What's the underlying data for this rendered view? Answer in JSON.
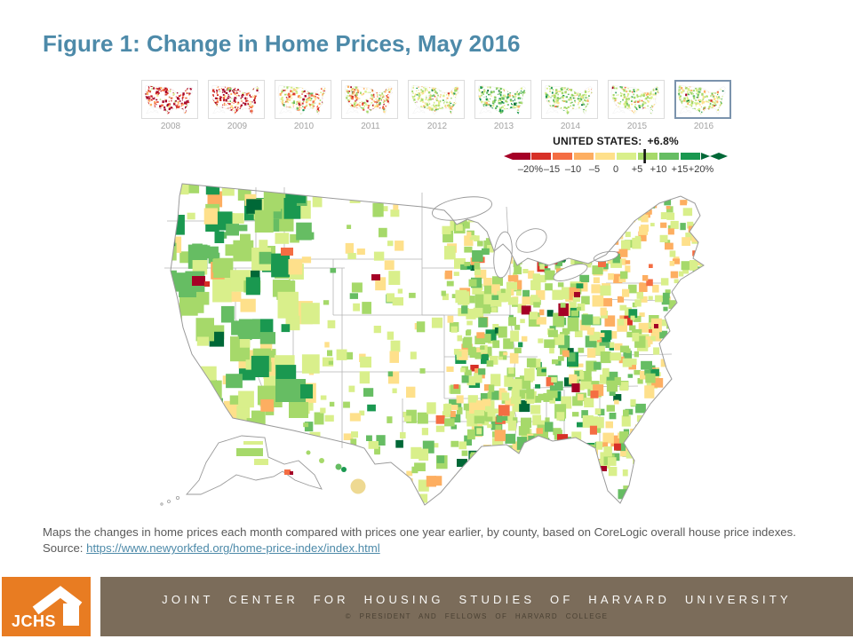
{
  "slide": {
    "title": "Figure 1: Change in Home Prices, May 2016",
    "title_color": "#4d8aa9"
  },
  "timeline": {
    "years": [
      "2008",
      "2009",
      "2010",
      "2011",
      "2012",
      "2013",
      "2014",
      "2015",
      "2016"
    ],
    "selected_year": "2016",
    "year_profiles": {
      "2008": {
        "dark_red": 0.34,
        "red": 0.2,
        "orange": 0.14,
        "light_orange": 0.08,
        "yellow": 0.04,
        "pale_green": 0.03,
        "light_green": 0.03,
        "medium_green": 0.01
      },
      "2009": {
        "dark_red": 0.3,
        "red": 0.2,
        "orange": 0.15,
        "light_orange": 0.09,
        "yellow": 0.05,
        "pale_green": 0.04,
        "light_green": 0.04,
        "medium_green": 0.02
      },
      "2010": {
        "dark_red": 0.05,
        "red": 0.08,
        "orange": 0.16,
        "light_orange": 0.15,
        "yellow": 0.13,
        "pale_green": 0.13,
        "light_green": 0.12,
        "medium_green": 0.06,
        "green": 0.02
      },
      "2011": {
        "dark_red": 0.07,
        "red": 0.12,
        "orange": 0.18,
        "light_orange": 0.15,
        "yellow": 0.12,
        "pale_green": 0.1,
        "light_green": 0.08,
        "medium_green": 0.04
      },
      "2012": {
        "dark_red": 0.01,
        "red": 0.01,
        "orange": 0.03,
        "light_orange": 0.07,
        "yellow": 0.17,
        "pale_green": 0.24,
        "light_green": 0.18,
        "medium_green": 0.09,
        "green": 0.03
      },
      "2013": {
        "orange": 0.01,
        "light_orange": 0.03,
        "yellow": 0.07,
        "pale_green": 0.16,
        "light_green": 0.22,
        "medium_green": 0.2,
        "green": 0.12,
        "dark_green": 0.05
      },
      "2014": {
        "orange": 0.01,
        "light_orange": 0.04,
        "yellow": 0.09,
        "pale_green": 0.2,
        "light_green": 0.24,
        "medium_green": 0.15,
        "green": 0.07,
        "dark_green": 0.02
      },
      "2015": {
        "dark_red": 0.01,
        "orange": 0.02,
        "light_orange": 0.05,
        "yellow": 0.09,
        "pale_green": 0.24,
        "light_green": 0.22,
        "medium_green": 0.11,
        "green": 0.04,
        "dark_green": 0.01
      },
      "2016": {
        "dark_red": 0.012,
        "red": 0.008,
        "orange": 0.015,
        "light_orange": 0.05,
        "yellow": 0.11,
        "pale_green": 0.26,
        "light_green": 0.22,
        "medium_green": 0.11,
        "green": 0.04,
        "dark_green": 0.015
      }
    }
  },
  "map_palette": {
    "dark_red": "#a50026",
    "red": "#d73027",
    "orange": "#f46d43",
    "light_orange": "#fdae61",
    "yellow": "#fee08b",
    "pale_green": "#d9ef8b",
    "light_green": "#a6d96a",
    "medium_green": "#66bd63",
    "green": "#1a9850",
    "dark_green": "#006837"
  },
  "legend": {
    "title_label": "UNITED STATES:",
    "value": "+6.8%",
    "marker_value": 6.8,
    "tick_labels": [
      "–20%",
      "–15",
      "–10",
      "–5",
      "0",
      "+5",
      "+10",
      "+15",
      "+20%"
    ],
    "colors": [
      "#a50026",
      "#d73027",
      "#f46d43",
      "#fdae61",
      "#fee08b",
      "#d9ef8b",
      "#a6d96a",
      "#66bd63",
      "#1a9850",
      "#006837"
    ]
  },
  "caption": {
    "text": "Maps the changes in home prices each month compared with prices one year earlier, by county, based on CoreLogic overall house price indexes. ",
    "source_prefix": "Source: ",
    "link_text": "https://www.newyorkfed.org/home-price-index/index.html",
    "link_color": "#4d8aa9"
  },
  "footer": {
    "logo_text": "JCHS",
    "org": "JOINT CENTER FOR HOUSING STUDIES OF HARVARD UNIVERSITY",
    "copyright": "© PRESIDENT AND FELLOWS OF HARVARD COLLEGE",
    "orange": "#e87c22",
    "brown": "#7b6c5a"
  },
  "chart_data": {
    "type": "choropleth_map",
    "title": "Change in Home Prices, May 2016",
    "geography": "United States, by county (incl. Alaska and Hawaii insets)",
    "metric": "Change in home prices vs. one year earlier (%)",
    "source": "CoreLogic overall house price indexes",
    "us_average_label": "UNITED STATES: +6.8%",
    "us_average_value": 6.8,
    "selected_year": "2016",
    "years_available": [
      "2008",
      "2009",
      "2010",
      "2011",
      "2012",
      "2013",
      "2014",
      "2015",
      "2016"
    ],
    "legend_bins": [
      {
        "range": "< -20%",
        "color": "#a50026"
      },
      {
        "range": "-20% to -15%",
        "color": "#d73027"
      },
      {
        "range": "-15% to -10%",
        "color": "#f46d43"
      },
      {
        "range": "-10% to -5%",
        "color": "#fdae61"
      },
      {
        "range": "-5% to 0%",
        "color": "#fee08b"
      },
      {
        "range": "0% to +5%",
        "color": "#d9ef8b"
      },
      {
        "range": "+5% to +10%",
        "color": "#a6d96a"
      },
      {
        "range": "+10% to +15%",
        "color": "#66bd63"
      },
      {
        "range": "+15% to +20%",
        "color": "#1a9850"
      },
      {
        "range": "> +20%",
        "color": "#006837"
      }
    ],
    "year_trends": {
      "2008": "widespread steep price declines (deep red map)",
      "2009": "widespread declines (red map)",
      "2010": "declines moderating, mixed orange/yellow with scattered green",
      "2011": "still mostly declining (orange/red map)",
      "2012": "flat to modest gains (yellow-green map)",
      "2013": "strong broad gains (dark green map)",
      "2014": "broad gains (green map)",
      "2015": "moderate gains (green map)",
      "2016": "moderate gains, mostly 0–10% with scattered declines; national +6.8%"
    }
  }
}
